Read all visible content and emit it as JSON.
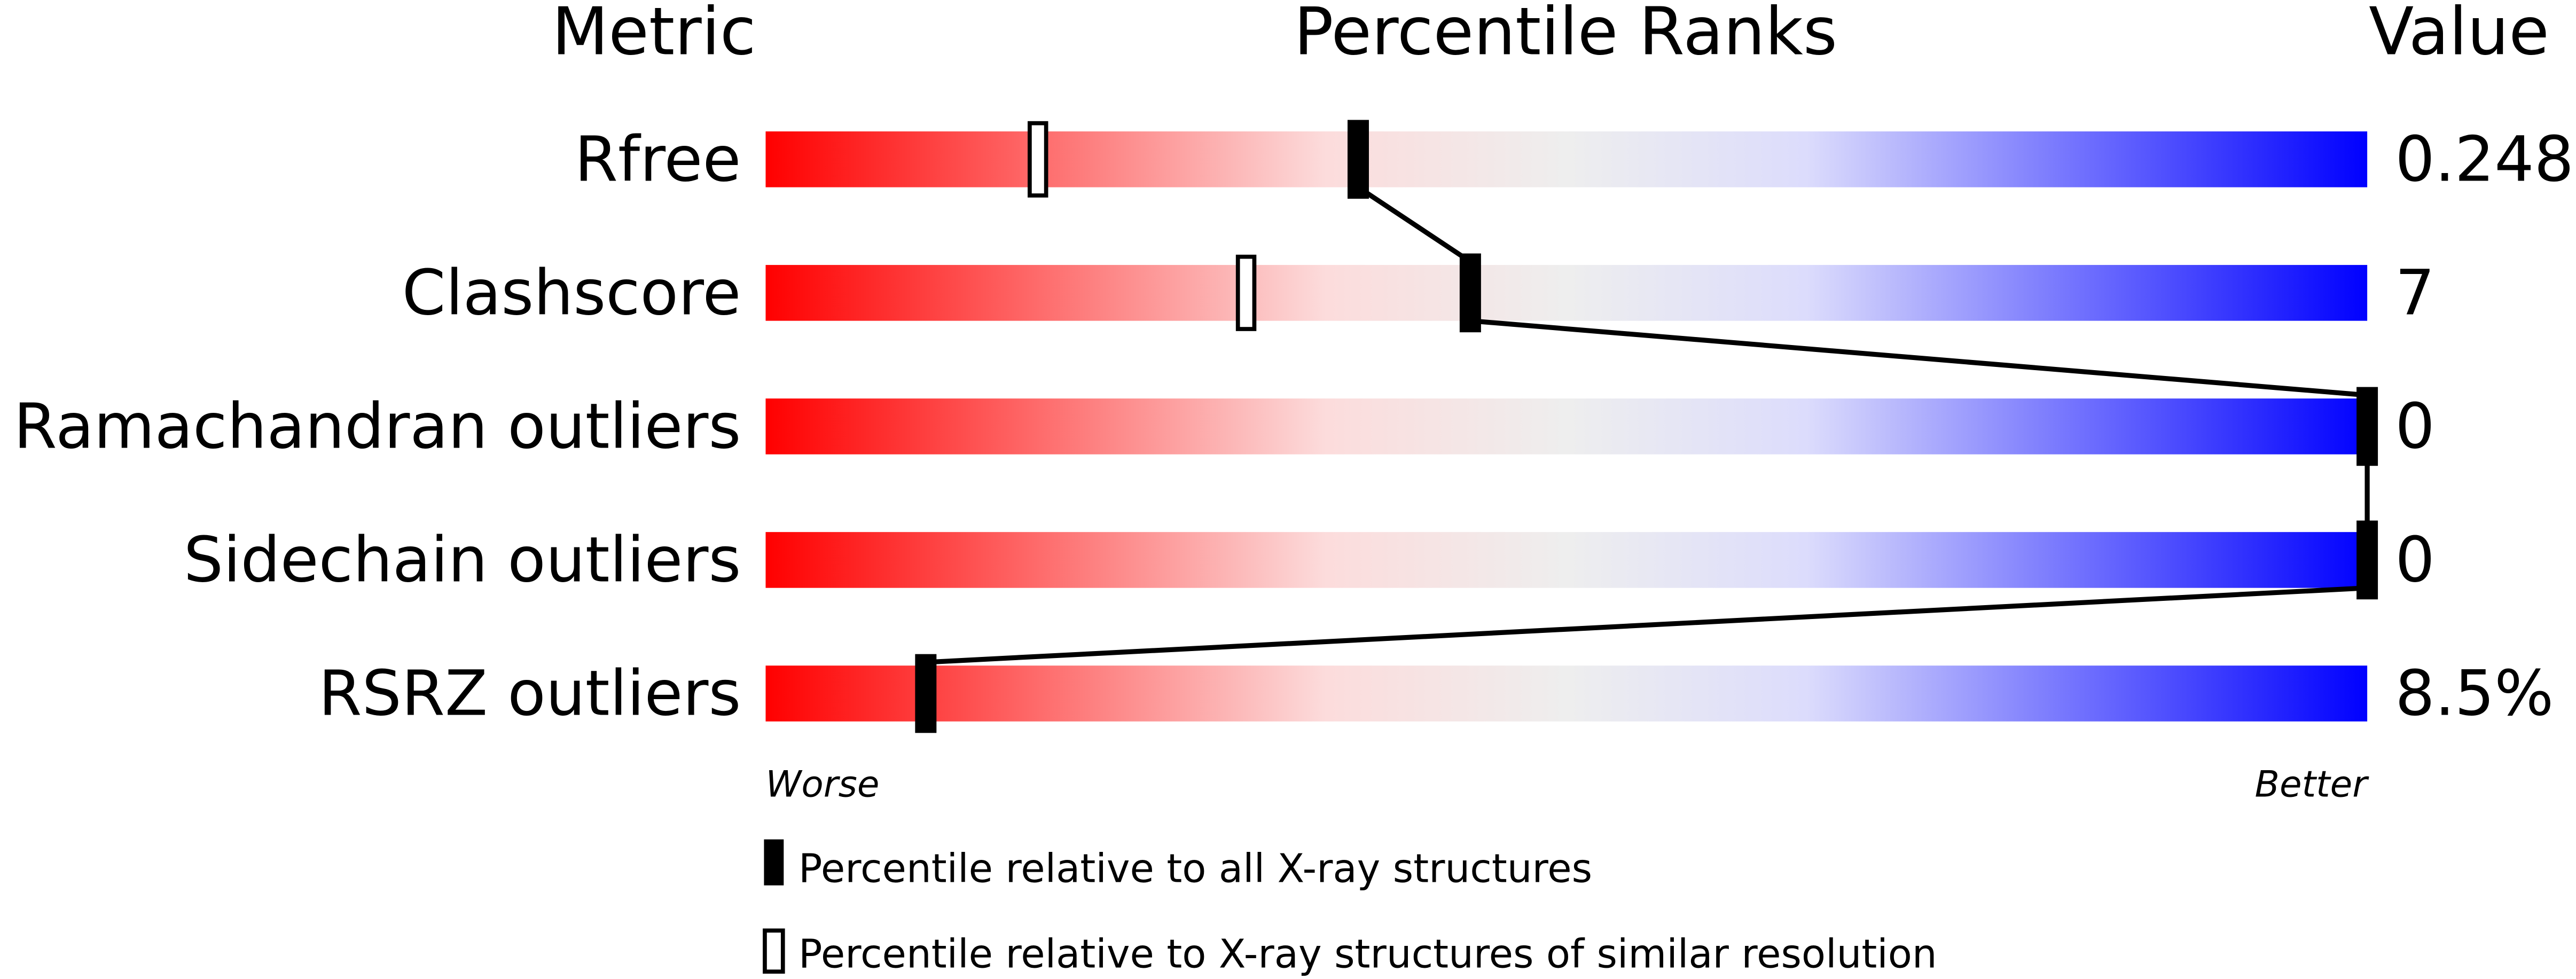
{
  "chart_data": {
    "type": "percentile-bar",
    "headers": {
      "metric": "Metric",
      "ranks": "Percentile Ranks",
      "value": "Value"
    },
    "xlim": [
      0,
      100
    ],
    "axis_labels": {
      "left": "Worse",
      "right": "Better"
    },
    "gradient_colors": [
      "#ff0000",
      "#fcdcdc",
      "#eeeeee",
      "#dcdcfc",
      "#0000ff"
    ],
    "rows": [
      {
        "metric": "Rfree",
        "value": "0.248",
        "percentile_all": 37,
        "percentile_similar": 17
      },
      {
        "metric": "Clashscore",
        "value": "7",
        "percentile_all": 44,
        "percentile_similar": 30
      },
      {
        "metric": "Ramachandran outliers",
        "value": "0",
        "percentile_all": 100,
        "percentile_similar": null
      },
      {
        "metric": "Sidechain outliers",
        "value": "0",
        "percentile_all": 100,
        "percentile_similar": null
      },
      {
        "metric": "RSRZ outliers",
        "value": "8.5%",
        "percentile_all": 10,
        "percentile_similar": null
      }
    ],
    "legend": [
      {
        "marker": "filled",
        "label": "Percentile relative to all X-ray structures"
      },
      {
        "marker": "open",
        "label": "Percentile relative to X-ray structures of similar resolution"
      }
    ]
  }
}
